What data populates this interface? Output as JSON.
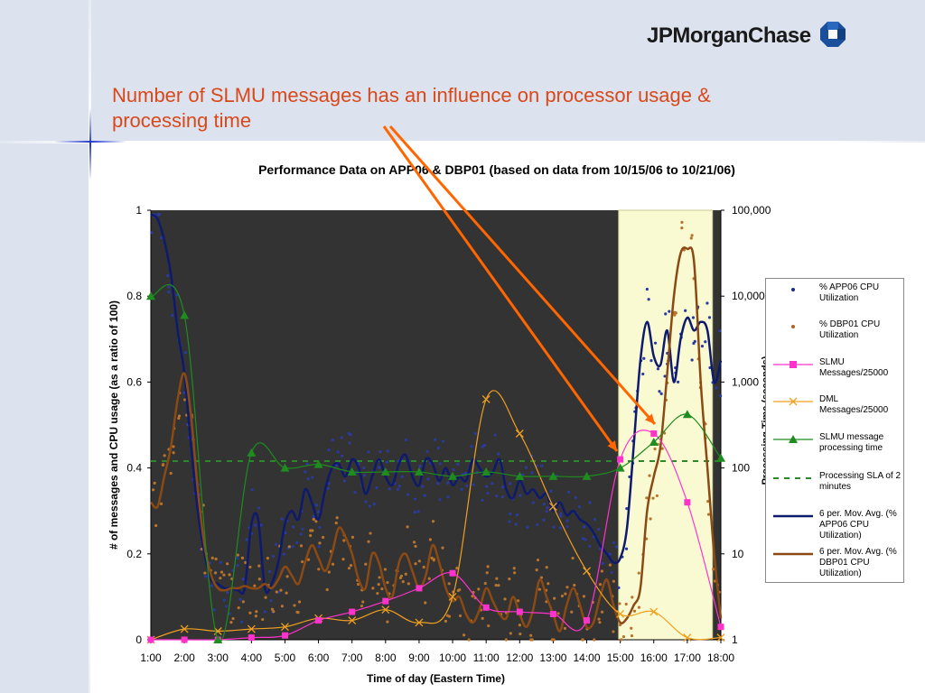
{
  "header": {
    "logo_text": "JPMorganChase",
    "logo_icon": "octagon-logo-icon",
    "slide_title": "Number of SLMU messages has an influence on processor usage & processing time"
  },
  "colors": {
    "background_dark": "#333333",
    "sla_window": "#fafad2",
    "app06": "#0d1a6e",
    "dbp01": "#8b4a14",
    "slmu": "#ff33cc",
    "dml": "#f0a020",
    "slmu_time": "#1e8c1e",
    "sla": "#2a8a2a",
    "title_orange": "#d9481a",
    "arrow": "#ff6600"
  },
  "chart_data": {
    "type": "line",
    "title": "Performance Data on APP06 & DBP01 (based on data from 10/15/06 to 10/21/06)",
    "xlabel": "Time of day (Eastern Time)",
    "ylabel": "# of messages and CPU usage (as a ratio of 100)",
    "ylabel_right": "Processing Time (seconds)",
    "x_ticks": [
      "1:00",
      "2:00",
      "3:00",
      "4:00",
      "5:00",
      "6:00",
      "7:00",
      "8:00",
      "9:00",
      "10:00",
      "11:00",
      "12:00",
      "13:00",
      "14:00",
      "15:00",
      "16:00",
      "17:00",
      "18:00"
    ],
    "y_ticks": [
      "0",
      "0.2",
      "0.4",
      "0.6",
      "0.8",
      "1"
    ],
    "y_right_ticks": [
      "1",
      "10",
      "100",
      "1,000",
      "10,000",
      "100,000"
    ],
    "ylim": [
      0,
      1
    ],
    "y_right_lim": [
      1,
      100000
    ],
    "y_right_scale": "log",
    "xlim": [
      1,
      18
    ],
    "highlight_window": [
      14.95,
      17.75
    ],
    "legend_position": "right",
    "series": [
      {
        "name": "% APP06 CPU Utilization",
        "type": "scatter",
        "color": "#1a2a8c"
      },
      {
        "name": "% DBP01 CPU Utilization",
        "type": "scatter",
        "color": "#b06020"
      },
      {
        "name": "SLMU Messages/25000",
        "type": "line-marker",
        "marker": "square",
        "color": "#ff33cc",
        "x": [
          1,
          2,
          3,
          4,
          5,
          6,
          7,
          8,
          9,
          10,
          11,
          12,
          13,
          14,
          15,
          16,
          17,
          18
        ],
        "values": [
          0.0,
          0.0,
          0.0,
          0.005,
          0.01,
          0.045,
          0.065,
          0.09,
          0.12,
          0.155,
          0.075,
          0.065,
          0.06,
          0.045,
          0.42,
          0.48,
          0.32,
          0.03
        ]
      },
      {
        "name": "DML Messages/25000",
        "type": "line-marker",
        "marker": "x",
        "color": "#f0a020",
        "x": [
          1,
          2,
          3,
          4,
          5,
          6,
          7,
          8,
          9,
          10,
          11,
          12,
          13,
          14,
          15,
          16,
          17,
          18
        ],
        "values": [
          0.0,
          0.025,
          0.02,
          0.025,
          0.03,
          0.05,
          0.045,
          0.07,
          0.04,
          0.1,
          0.56,
          0.48,
          0.31,
          0.16,
          0.06,
          0.065,
          0.005,
          0.005
        ]
      },
      {
        "name": "SLMU message processing time",
        "type": "line-marker",
        "marker": "triangle",
        "color": "#1e8c1e",
        "axis": "right",
        "x": [
          1,
          2,
          3,
          4,
          5,
          6,
          7,
          8,
          9,
          10,
          11,
          12,
          13,
          14,
          15,
          16,
          17,
          18
        ],
        "values": [
          10000,
          6000,
          1,
          150,
          100,
          110,
          90,
          90,
          90,
          80,
          90,
          80,
          80,
          80,
          100,
          200,
          420,
          130
        ]
      },
      {
        "name": "Processing SLA of 2 minutes",
        "type": "hline",
        "color": "#2a8a2a",
        "axis": "right",
        "values": [
          120
        ]
      },
      {
        "name": "6 per. Mov. Avg. (% APP06 CPU Utilization)",
        "type": "line",
        "color": "#0d1a6e",
        "x": [
          1,
          1.2,
          1.4,
          1.6,
          1.8,
          2,
          2.2,
          2.4,
          2.6,
          2.8,
          3,
          3.2,
          3.4,
          3.6,
          3.8,
          4,
          4.2,
          4.4,
          4.6,
          4.8,
          5,
          5.2,
          5.4,
          5.6,
          5.8,
          6,
          6.2,
          6.4,
          6.6,
          6.8,
          7,
          7.2,
          7.4,
          7.6,
          7.8,
          8,
          8.2,
          8.4,
          8.6,
          8.8,
          9,
          9.2,
          9.4,
          9.6,
          9.8,
          10,
          10.2,
          10.4,
          10.6,
          10.8,
          11,
          11.2,
          11.4,
          11.6,
          11.8,
          12,
          12.2,
          12.4,
          12.6,
          12.8,
          13,
          13.2,
          13.4,
          13.6,
          13.8,
          14,
          14.2,
          14.4,
          14.6,
          14.8,
          15,
          15.2,
          15.4,
          15.6,
          15.8,
          16,
          16.2,
          16.4,
          16.6,
          16.8,
          17,
          17.2,
          17.4,
          17.6,
          17.8,
          18
        ],
        "values": [
          0.99,
          0.98,
          0.93,
          0.85,
          0.72,
          0.62,
          0.45,
          0.3,
          0.2,
          0.14,
          0.13,
          0.12,
          0.12,
          0.115,
          0.12,
          0.27,
          0.28,
          0.12,
          0.13,
          0.18,
          0.27,
          0.3,
          0.28,
          0.35,
          0.32,
          0.28,
          0.35,
          0.4,
          0.41,
          0.38,
          0.42,
          0.4,
          0.34,
          0.38,
          0.42,
          0.38,
          0.36,
          0.41,
          0.43,
          0.38,
          0.36,
          0.42,
          0.41,
          0.37,
          0.4,
          0.36,
          0.38,
          0.37,
          0.42,
          0.4,
          0.38,
          0.39,
          0.42,
          0.35,
          0.33,
          0.37,
          0.34,
          0.35,
          0.33,
          0.34,
          0.3,
          0.32,
          0.29,
          0.3,
          0.28,
          0.27,
          0.25,
          0.22,
          0.2,
          0.18,
          0.19,
          0.26,
          0.45,
          0.65,
          0.74,
          0.66,
          0.64,
          0.72,
          0.6,
          0.7,
          0.75,
          0.72,
          0.74,
          0.72,
          0.6,
          0.65
        ]
      },
      {
        "name": "6 per. Mov. Avg. (% DBP01 CPU Utilization)",
        "type": "line",
        "color": "#8b4a14",
        "x": [
          1,
          1.2,
          1.4,
          1.6,
          1.8,
          2,
          2.2,
          2.4,
          2.6,
          2.8,
          3,
          3.2,
          3.4,
          3.6,
          3.8,
          4,
          4.2,
          4.4,
          4.6,
          4.8,
          5,
          5.2,
          5.4,
          5.6,
          5.8,
          6,
          6.2,
          6.4,
          6.6,
          6.8,
          7,
          7.2,
          7.4,
          7.6,
          7.8,
          8,
          8.2,
          8.4,
          8.6,
          8.8,
          9,
          9.2,
          9.4,
          9.6,
          9.8,
          10,
          10.2,
          10.4,
          10.6,
          10.8,
          11,
          11.2,
          11.4,
          11.6,
          11.8,
          12,
          12.2,
          12.4,
          12.6,
          12.8,
          13,
          13.2,
          13.4,
          13.6,
          13.8,
          14,
          14.2,
          14.4,
          14.6,
          14.8,
          15,
          15.2,
          15.4,
          15.6,
          15.8,
          16,
          16.2,
          16.4,
          16.6,
          16.8,
          17,
          17.2,
          17.4,
          17.6,
          17.8,
          18
        ],
        "values": [
          0.32,
          0.31,
          0.38,
          0.45,
          0.56,
          0.62,
          0.52,
          0.35,
          0.22,
          0.15,
          0.12,
          0.115,
          0.12,
          0.12,
          0.125,
          0.12,
          0.12,
          0.13,
          0.12,
          0.14,
          0.17,
          0.15,
          0.13,
          0.18,
          0.22,
          0.19,
          0.16,
          0.2,
          0.26,
          0.24,
          0.2,
          0.14,
          0.12,
          0.2,
          0.18,
          0.12,
          0.1,
          0.18,
          0.2,
          0.16,
          0.12,
          0.15,
          0.22,
          0.18,
          0.12,
          0.09,
          0.1,
          0.06,
          0.04,
          0.07,
          0.12,
          0.09,
          0.06,
          0.05,
          0.1,
          0.06,
          0.03,
          0.07,
          0.14,
          0.1,
          0.06,
          0.02,
          0.08,
          0.12,
          0.08,
          0.03,
          0.04,
          0.1,
          0.14,
          0.08,
          0.04,
          0.05,
          0.08,
          0.12,
          0.3,
          0.38,
          0.45,
          0.62,
          0.8,
          0.9,
          0.91,
          0.88,
          0.6,
          0.4,
          0.2,
          0.05
        ]
      }
    ],
    "annotations": [
      "arrow from title to SLMU peak near 15:00",
      "arrow from title to SLMU peak near 16:00"
    ]
  }
}
